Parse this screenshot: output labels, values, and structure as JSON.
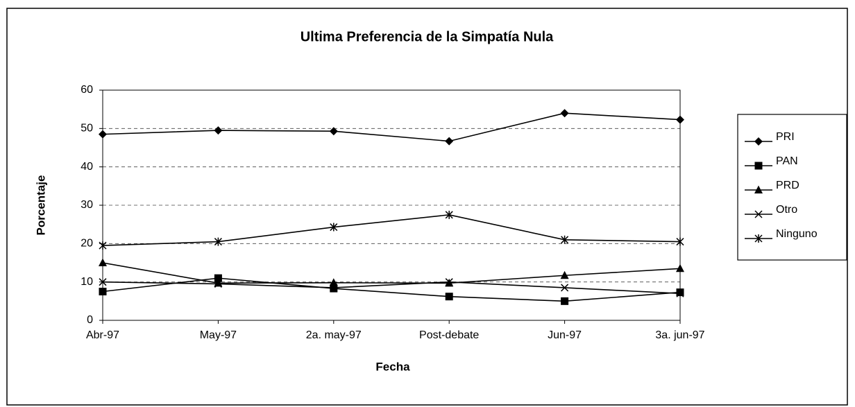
{
  "chart_data": {
    "type": "line",
    "title": "Ultima Preferencia de la Simpatía Nula",
    "x_label": "Fecha",
    "y_label": "Porcentaje",
    "categories": [
      "Abr-97",
      "May-97",
      "2a. may-97",
      "Post-debate",
      "Jun-97",
      "3a. jun-97"
    ],
    "series": [
      {
        "name": "PRI",
        "color": "#000000",
        "marker": "diamond",
        "values": [
          48.5,
          49.5,
          49.3,
          46.7,
          54,
          52.3
        ]
      },
      {
        "name": "PAN",
        "color": "#000000",
        "marker": "square",
        "values": [
          7.5,
          11,
          8.3,
          6.2,
          5,
          7.3
        ]
      },
      {
        "name": "PRD",
        "color": "#000000",
        "marker": "triangle",
        "values": [
          15,
          9.7,
          9.8,
          9.7,
          11.7,
          13.5
        ]
      },
      {
        "name": "Otro",
        "color": "#000000",
        "marker": "x",
        "values": [
          10,
          9.5,
          8.5,
          10,
          8.5,
          7
        ]
      },
      {
        "name": "Ninguno",
        "color": "#000000",
        "marker": "star",
        "values": [
          19.5,
          20.5,
          24.3,
          27.5,
          21,
          20.5
        ]
      }
    ],
    "ylim": [
      0,
      60
    ],
    "yticks": [
      0,
      10,
      20,
      30,
      40,
      50,
      60
    ],
    "grid": true,
    "legend": "right"
  }
}
